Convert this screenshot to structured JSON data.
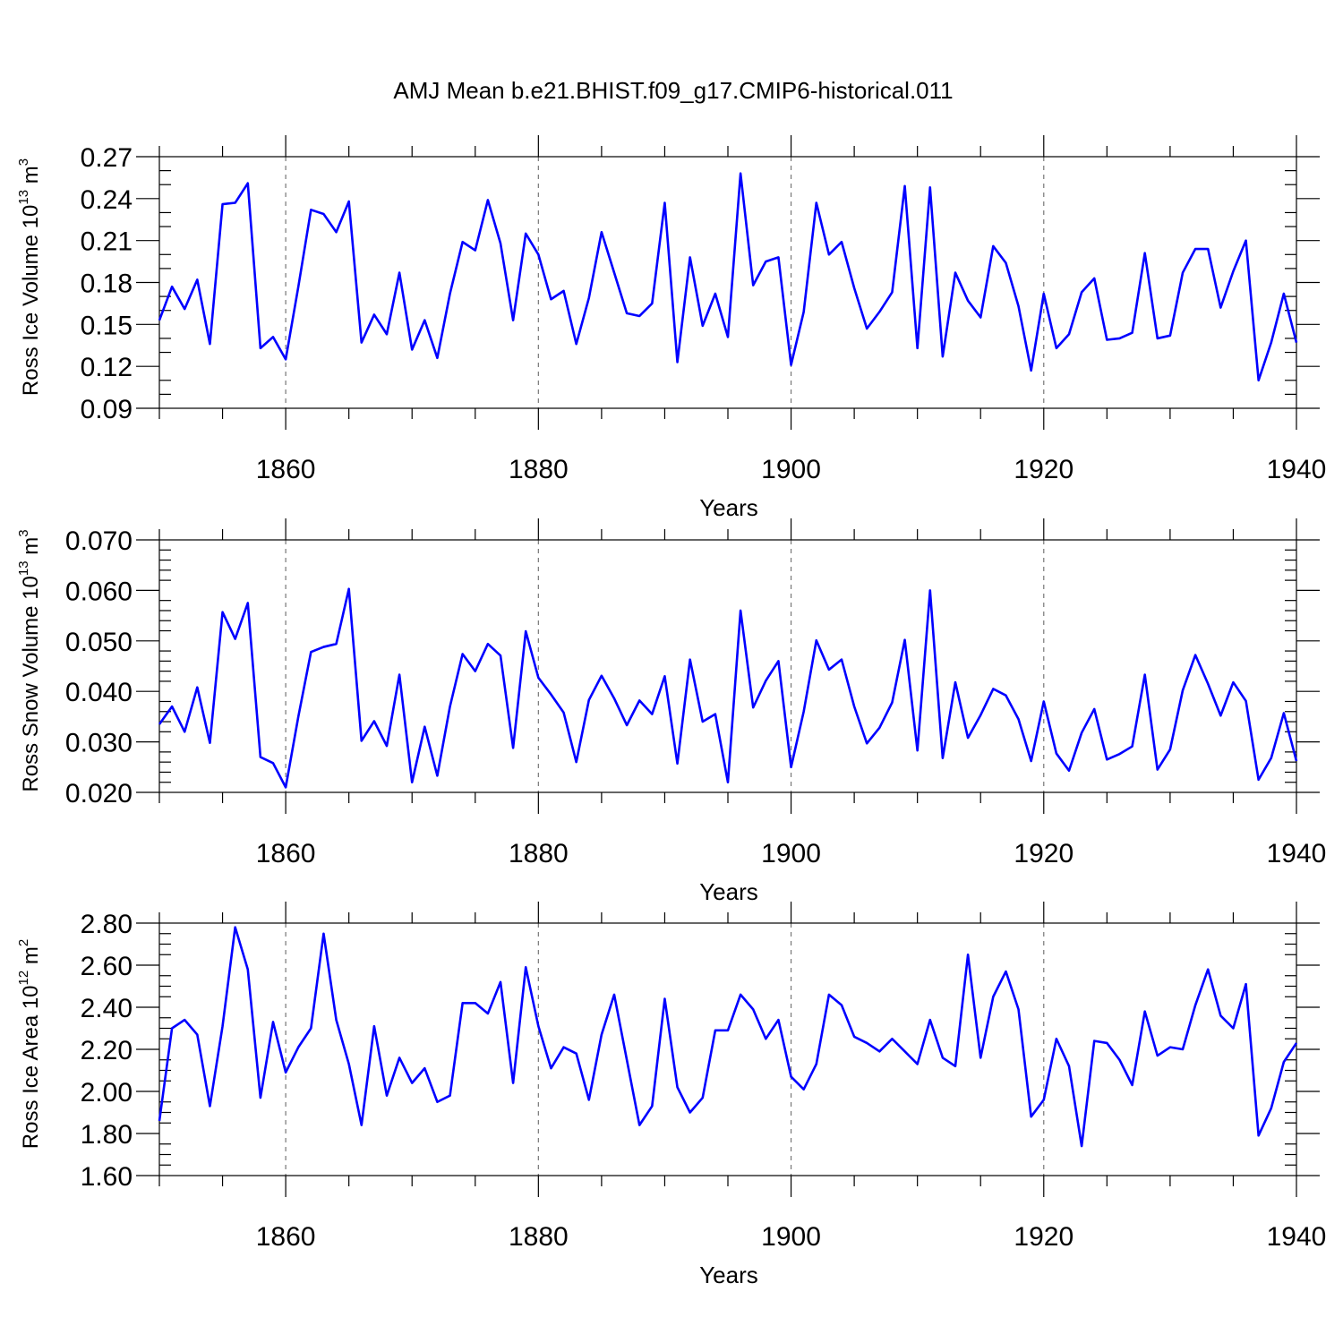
{
  "figure": {
    "title": "AMJ Mean b.e21.BHIST.f09_g17.CMIP6-historical.011"
  },
  "line_color": "#0000ff",
  "chart_data": [
    {
      "type": "line",
      "name": "ross-ice-volume",
      "ylabel": {
        "main": "Ross Ice Volume 10",
        "exp": "13",
        "unit": " m",
        "unit_exp": "3"
      },
      "xlabel": "Years",
      "xlim": [
        1850,
        1940
      ],
      "ylim": [
        0.09,
        0.27
      ],
      "xticks": [
        1860,
        1880,
        1900,
        1920,
        1940
      ],
      "xtick_labels": [
        "1860",
        "1880",
        "1900",
        "1920",
        "1940"
      ],
      "yticks": [
        0.09,
        0.12,
        0.15,
        0.18,
        0.21,
        0.24,
        0.27
      ],
      "ytick_labels": [
        "0.09",
        "0.12",
        "0.15",
        "0.18",
        "0.21",
        "0.24",
        "0.27"
      ],
      "minor_y": 0.01,
      "x_start": 1850,
      "values": [
        0.153,
        0.177,
        0.161,
        0.182,
        0.136,
        0.236,
        0.237,
        0.251,
        0.133,
        0.141,
        0.125,
        0.177,
        0.232,
        0.229,
        0.216,
        0.238,
        0.137,
        0.157,
        0.143,
        0.187,
        0.132,
        0.153,
        0.126,
        0.172,
        0.209,
        0.203,
        0.239,
        0.208,
        0.153,
        0.215,
        0.2,
        0.168,
        0.174,
        0.136,
        0.169,
        0.216,
        0.187,
        0.158,
        0.156,
        0.165,
        0.237,
        0.123,
        0.198,
        0.149,
        0.172,
        0.141,
        0.258,
        0.178,
        0.195,
        0.198,
        0.121,
        0.159,
        0.237,
        0.2,
        0.209,
        0.176,
        0.147,
        0.159,
        0.173,
        0.249,
        0.133,
        0.248,
        0.127,
        0.187,
        0.167,
        0.155,
        0.206,
        0.194,
        0.163,
        0.117,
        0.172,
        0.133,
        0.143,
        0.173,
        0.183,
        0.139,
        0.14,
        0.144,
        0.201,
        0.14,
        0.142,
        0.187,
        0.204,
        0.204,
        0.162,
        0.188,
        0.21,
        0.11,
        0.137,
        0.172,
        0.137
      ]
    },
    {
      "type": "line",
      "name": "ross-snow-volume",
      "ylabel": {
        "main": "Ross Snow Volume 10",
        "exp": "13",
        "unit": " m",
        "unit_exp": "3"
      },
      "xlabel": "Years",
      "xlim": [
        1850,
        1940
      ],
      "ylim": [
        0.02,
        0.07
      ],
      "xticks": [
        1860,
        1880,
        1900,
        1920,
        1940
      ],
      "xtick_labels": [
        "1860",
        "1880",
        "1900",
        "1920",
        "1940"
      ],
      "yticks": [
        0.02,
        0.03,
        0.04,
        0.05,
        0.06,
        0.07
      ],
      "ytick_labels": [
        "0.020",
        "0.030",
        "0.040",
        "0.050",
        "0.060",
        "0.070"
      ],
      "minor_y": 0.002,
      "x_start": 1850,
      "values": [
        0.0335,
        0.037,
        0.032,
        0.0408,
        0.0298,
        0.0557,
        0.0504,
        0.0575,
        0.027,
        0.0258,
        0.021,
        0.035,
        0.0478,
        0.0488,
        0.0494,
        0.0603,
        0.0302,
        0.0341,
        0.0292,
        0.0433,
        0.022,
        0.033,
        0.0233,
        0.037,
        0.0474,
        0.044,
        0.0494,
        0.0471,
        0.0288,
        0.0519,
        0.0427,
        0.0394,
        0.0358,
        0.026,
        0.0383,
        0.0431,
        0.0386,
        0.0333,
        0.0382,
        0.0355,
        0.043,
        0.0257,
        0.0463,
        0.034,
        0.0355,
        0.022,
        0.056,
        0.0368,
        0.0421,
        0.046,
        0.025,
        0.036,
        0.0501,
        0.0443,
        0.0463,
        0.037,
        0.0297,
        0.0328,
        0.0378,
        0.0502,
        0.0283,
        0.06,
        0.0268,
        0.0418,
        0.0308,
        0.0353,
        0.0405,
        0.0392,
        0.0345,
        0.0262,
        0.038,
        0.0277,
        0.0243,
        0.0318,
        0.0365,
        0.0265,
        0.0276,
        0.0291,
        0.0433,
        0.0245,
        0.0285,
        0.0402,
        0.0472,
        0.0415,
        0.0352,
        0.0418,
        0.0381,
        0.0225,
        0.0268,
        0.0357,
        0.0262
      ]
    },
    {
      "type": "line",
      "name": "ross-ice-area",
      "ylabel": {
        "main": "Ross Ice Area 10",
        "exp": "12",
        "unit": " m",
        "unit_exp": "2"
      },
      "xlabel": "Years",
      "xlim": [
        1850,
        1940
      ],
      "ylim": [
        1.6,
        2.8
      ],
      "xticks": [
        1860,
        1880,
        1900,
        1920,
        1940
      ],
      "xtick_labels": [
        "1860",
        "1880",
        "1900",
        "1920",
        "1940"
      ],
      "yticks": [
        1.6,
        1.8,
        2.0,
        2.2,
        2.4,
        2.6,
        2.8
      ],
      "ytick_labels": [
        "1.60",
        "1.80",
        "2.00",
        "2.20",
        "2.40",
        "2.60",
        "2.80"
      ],
      "minor_y": 0.05,
      "x_start": 1850,
      "values": [
        1.86,
        2.3,
        2.34,
        2.27,
        1.93,
        2.31,
        2.78,
        2.58,
        1.97,
        2.33,
        2.09,
        2.21,
        2.3,
        2.75,
        2.34,
        2.13,
        1.84,
        2.31,
        1.98,
        2.16,
        2.04,
        2.11,
        1.95,
        1.98,
        2.42,
        2.42,
        2.37,
        2.52,
        2.04,
        2.59,
        2.31,
        2.11,
        2.21,
        2.18,
        1.96,
        2.27,
        2.46,
        2.15,
        1.84,
        1.93,
        2.44,
        2.02,
        1.9,
        1.97,
        2.29,
        2.29,
        2.46,
        2.39,
        2.25,
        2.34,
        2.07,
        2.01,
        2.13,
        2.46,
        2.41,
        2.26,
        2.23,
        2.19,
        2.25,
        2.19,
        2.13,
        2.34,
        2.16,
        2.12,
        2.65,
        2.16,
        2.45,
        2.57,
        2.39,
        1.88,
        1.96,
        2.25,
        2.12,
        1.74,
        2.24,
        2.23,
        2.15,
        2.03,
        2.38,
        2.17,
        2.21,
        2.2,
        2.41,
        2.58,
        2.36,
        2.3,
        2.51,
        1.79,
        1.92,
        2.14,
        2.23
      ]
    }
  ]
}
